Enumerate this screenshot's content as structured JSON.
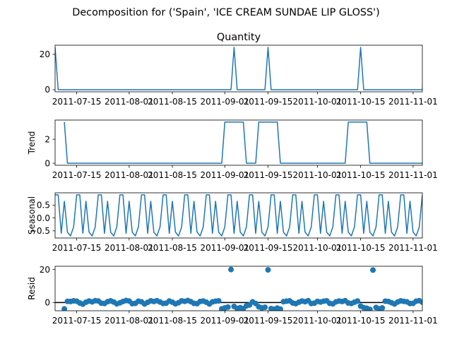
{
  "chart_data": {
    "title": "Decomposition for ('Spain', 'ICE CREAM SUNDAE LIP GLOSS')",
    "colors": {
      "line": "#1f77b4",
      "marker": "#1f77b4",
      "axis": "#000000"
    },
    "x_range": [
      "2011-07-08",
      "2011-11-04"
    ],
    "x_ticks": [
      "2011-07-15",
      "2011-08-01",
      "2011-08-15",
      "2011-09-01",
      "2011-09-15",
      "2011-10-01",
      "2011-10-15",
      "2011-11-01"
    ],
    "panels": [
      {
        "type": "line",
        "title": "Quantity",
        "ylabel": "",
        "ylim": [
          -1.2,
          25.2
        ],
        "yticks": [
          "0",
          "20"
        ],
        "x_start": "2011-07-08",
        "step_days": 1,
        "values": [
          24,
          0,
          0,
          0,
          0,
          0,
          0,
          0,
          0,
          0,
          0,
          0,
          0,
          0,
          0,
          0,
          0,
          0,
          0,
          0,
          0,
          0,
          0,
          0,
          0,
          0,
          0,
          0,
          0,
          0,
          0,
          0,
          0,
          0,
          0,
          0,
          0,
          0,
          0,
          0,
          0,
          0,
          0,
          0,
          0,
          0,
          0,
          0,
          0,
          0,
          0,
          0,
          0,
          0,
          0,
          0,
          0,
          0,
          24,
          0,
          0,
          0,
          0,
          0,
          0,
          0,
          0,
          0,
          0,
          24,
          0,
          0,
          0,
          0,
          0,
          0,
          0,
          0,
          0,
          0,
          0,
          0,
          0,
          0,
          0,
          0,
          0,
          0,
          0,
          0,
          0,
          0,
          0,
          0,
          0,
          0,
          0,
          0,
          0,
          24,
          0,
          0,
          0,
          0,
          0,
          0,
          0,
          0,
          0,
          0,
          0,
          0,
          0,
          0,
          0,
          0,
          0,
          0,
          0,
          0,
          24
        ]
      },
      {
        "type": "line",
        "title": "",
        "ylabel": "Trend",
        "ylim": [
          -0.17,
          3.6
        ],
        "yticks": [
          "0",
          "2"
        ],
        "x_start": "2011-07-11",
        "step_days": 1,
        "values": [
          3.43,
          0,
          0,
          0,
          0,
          0,
          0,
          0,
          0,
          0,
          0,
          0,
          0,
          0,
          0,
          0,
          0,
          0,
          0,
          0,
          0,
          0,
          0,
          0,
          0,
          0,
          0,
          0,
          0,
          0,
          0,
          0,
          0,
          0,
          0,
          0,
          0,
          0,
          0,
          0,
          0,
          0,
          0,
          0,
          0,
          0,
          0,
          0,
          0,
          0,
          0,
          0,
          3.43,
          3.43,
          3.43,
          3.43,
          3.43,
          3.43,
          3.43,
          0,
          0,
          0,
          0,
          3.43,
          3.43,
          3.43,
          3.43,
          3.43,
          3.43,
          3.43,
          0,
          0,
          0,
          0,
          0,
          0,
          0,
          0,
          0,
          0,
          0,
          0,
          0,
          0,
          0,
          0,
          0,
          0,
          0,
          0,
          0,
          0,
          3.43,
          3.43,
          3.43,
          3.43,
          3.43,
          3.43,
          3.43,
          0,
          0,
          0,
          0,
          0,
          0,
          0,
          0,
          0,
          0,
          0,
          0,
          0,
          0,
          0,
          0,
          0,
          0,
          0,
          0,
          3.43
        ]
      },
      {
        "type": "line",
        "title": "",
        "ylabel": "Seasonal",
        "ylim": [
          -0.78,
          0.98
        ],
        "yticks": [
          "0.5",
          "0.0",
          "−0.5"
        ],
        "ytick_values": [
          0.5,
          0.0,
          -0.5
        ],
        "period": 7,
        "x_start": "2011-07-08",
        "step_days": 1,
        "pattern": [
          0.9,
          0.9,
          -0.6,
          0.65,
          -0.55,
          -0.7,
          -0.35
        ],
        "count": 120
      },
      {
        "type": "scatter",
        "title": "",
        "ylabel": "Resid",
        "ylim": [
          -5.0,
          22.0
        ],
        "yticks": [
          "0",
          "20"
        ],
        "baseline": 0,
        "x_start": "2011-07-11",
        "step_days": 1,
        "values": [
          -3.9,
          0.7,
          0.6,
          1.0,
          0.8,
          -0.3,
          -1.0,
          0.2,
          0.9,
          0.4,
          1.1,
          0.9,
          -0.4,
          -0.6,
          0.5,
          1.0,
          0.3,
          -0.8,
          -0.2,
          0.6,
          1.2,
          0.9,
          -0.7,
          -0.5,
          0.8,
          0.4,
          -0.9,
          0.1,
          1.0,
          0.6,
          1.1,
          0.3,
          -0.6,
          -0.4,
          0.9,
          0.2,
          -0.8,
          -0.1,
          1.0,
          0.7,
          1.2,
          0.5,
          -0.5,
          -0.7,
          0.6,
          0.9,
          0.2,
          -0.9,
          0.4,
          0.8,
          1.0,
          -3.9,
          -3.3,
          -2.8,
          20.0,
          -2.4,
          -3.6,
          -3.1,
          -3.7,
          -2.0,
          -1.5,
          0.4,
          -0.6,
          -2.6,
          -3.3,
          -2.9,
          19.8,
          -3.7,
          -4.1,
          -3.4,
          -4.0,
          0.5,
          0.8,
          1.0,
          -0.3,
          -0.7,
          0.2,
          0.9,
          0.5,
          1.1,
          -0.6,
          -0.4,
          0.7,
          0.3,
          0.8,
          1.0,
          -0.5,
          -0.8,
          0.4,
          0.9,
          0.6,
          1.1,
          -0.3,
          -0.6,
          0.2,
          0.9,
          -2.2,
          -3.1,
          -3.5,
          -4.2,
          19.7,
          -3.0,
          -3.8,
          -3.3,
          0.8,
          0.6,
          -0.1,
          -0.9,
          0.3,
          1.0,
          0.7,
          0.4,
          -0.6,
          -0.5,
          0.8,
          1.1,
          0.2,
          -0.7,
          0.5,
          0.9,
          0.3,
          -0.4,
          -0.9,
          0.6,
          1.0,
          0.1,
          -0.8,
          0.7,
          0.9,
          1.0,
          -1.2,
          0.6,
          -3.0
        ]
      }
    ]
  }
}
